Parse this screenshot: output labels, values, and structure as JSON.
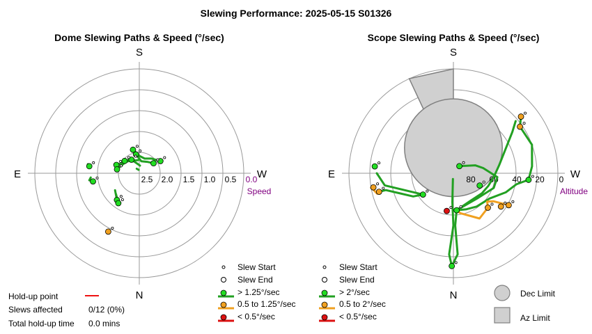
{
  "title": "Slewing Performance: 2025-05-15 S01326",
  "colors": {
    "ring": "#999999",
    "axis": "#999999",
    "fast": "#22a022",
    "medium": "#f0a020",
    "slow": "#dd1111",
    "marker_fast": "#22dd22",
    "marker_medium": "#f0a020",
    "marker_slow": "#dd1111",
    "scale_label": "#800080",
    "limit_fill": "#d0d0d0",
    "limit_edge": "#808080",
    "holdup": "#ee1111"
  },
  "legend": {
    "slew_start": "Slew Start",
    "slew_end": "Slew End",
    "dome_fast": "> 1.25°/sec",
    "dome_medium": "0.5 to 1.25°/sec",
    "dome_slow": "< 0.5°/sec",
    "scope_fast": "> 2°/sec",
    "scope_medium": "0.5 to 2°/sec",
    "scope_slow": "< 0.5°/sec",
    "dec_limit": "Dec Limit",
    "az_limit": "Az Limit"
  },
  "stats": {
    "holdup_label": "Hold-up point",
    "slews_affected_label": "Slews affected",
    "slews_affected_value": "0/12 (0%)",
    "total_holdup_label": "Total hold-up time",
    "total_holdup_value": "0.0 mins"
  },
  "chart_data": [
    {
      "type": "polar-line",
      "title": "Dome Slewing Paths & Speed (°/sec)",
      "directions": {
        "top": "S",
        "bottom": "N",
        "left": "E",
        "right": "W"
      },
      "radial_label": "Speed",
      "radial_axis": "speed (°/sec), 3.0 at centre decreasing to 0.0 at outer ring",
      "radial_ticks": [
        "2.5",
        "2.0",
        "1.5",
        "1.0",
        "0.5",
        "0.0"
      ],
      "radial_tick_values": [
        2.5,
        2.0,
        1.5,
        1.0,
        0.5,
        0.0
      ],
      "paths": [
        {
          "speed_class": "fast",
          "points": [
            [
              165,
              2.3
            ],
            [
              180,
              2.5
            ],
            [
              200,
              2.55
            ],
            [
              220,
              2.45
            ],
            [
              240,
              2.3
            ]
          ]
        },
        {
          "speed_class": "fast",
          "points": [
            [
              170,
              2.45
            ],
            [
              190,
              2.65
            ],
            [
              215,
              2.6
            ],
            [
              235,
              2.5
            ]
          ]
        },
        {
          "speed_class": "fast",
          "points": [
            [
              150,
              2.55
            ],
            [
              165,
              2.7
            ],
            [
              185,
              2.78
            ]
          ]
        },
        {
          "speed_class": "fast",
          "points": [
            [
              130,
              2.45
            ],
            [
              150,
              2.58
            ],
            [
              175,
              2.62
            ]
          ]
        },
        {
          "speed_class": "fast",
          "points": [
            [
              110,
              2.3
            ],
            [
              125,
              2.47
            ],
            [
              145,
              2.55
            ]
          ]
        },
        {
          "speed_class": "fast",
          "points": [
            [
              100,
              2.35
            ],
            [
              115,
              2.45
            ],
            [
              140,
              2.5
            ]
          ]
        },
        {
          "speed_class": "fast",
          "points": [
            [
              98,
              1.55
            ],
            [
              100,
              1.5
            ],
            [
              97,
              1.52
            ]
          ]
        },
        {
          "speed_class": "fast",
          "points": [
            [
              80,
              1.65
            ],
            [
              82,
              1.55
            ],
            [
              85,
              1.6
            ]
          ]
        },
        {
          "speed_class": "fast",
          "points": [
            [
              40,
              2.0
            ],
            [
              55,
              2.15
            ]
          ]
        },
        {
          "speed_class": "fast",
          "points": [
            [
              35,
              1.95
            ],
            [
              48,
              2.1
            ]
          ]
        },
        {
          "speed_class": "fast",
          "points": [
            [
              150,
              2.85
            ],
            [
              170,
              2.9
            ]
          ]
        }
      ],
      "markers": [
        {
          "az": 240,
          "speed": 2.3,
          "speed_class": "fast"
        },
        {
          "az": 235,
          "speed": 2.5,
          "speed_class": "fast"
        },
        {
          "az": 165,
          "speed": 2.3,
          "speed_class": "fast"
        },
        {
          "az": 170,
          "speed": 2.45,
          "speed_class": "fast"
        },
        {
          "az": 150,
          "speed": 2.55,
          "speed_class": "fast"
        },
        {
          "az": 130,
          "speed": 2.45,
          "speed_class": "fast"
        },
        {
          "az": 110,
          "speed": 2.3,
          "speed_class": "fast"
        },
        {
          "az": 100,
          "speed": 2.35,
          "speed_class": "fast"
        },
        {
          "az": 98,
          "speed": 1.55,
          "speed_class": "fast"
        },
        {
          "az": 80,
          "speed": 1.65,
          "speed_class": "fast"
        },
        {
          "az": 40,
          "speed": 2.0,
          "speed_class": "fast"
        },
        {
          "az": 35,
          "speed": 1.95,
          "speed_class": "fast"
        },
        {
          "az": 28,
          "speed": 1.1,
          "speed_class": "medium"
        }
      ]
    },
    {
      "type": "polar-line",
      "title": "Scope Slewing Paths & Speed (°/sec)",
      "directions": {
        "top": "S",
        "bottom": "N",
        "left": "E",
        "right": "W"
      },
      "radial_label": "Altitude",
      "radial_axis": "altitude (°), 90 at centre decreasing to 0 at outer ring",
      "radial_ticks": [
        "80",
        "60",
        "40",
        "20",
        "0"
      ],
      "radial_tick_values": [
        80,
        60,
        40,
        20,
        0
      ],
      "paths": [
        {
          "speed_class": "fast",
          "points": [
            [
              1,
              10
            ],
            [
              3,
              20
            ],
            [
              0,
              45
            ],
            [
              2,
              65
            ],
            [
              5,
              85
            ]
          ]
        },
        {
          "speed_class": "fast",
          "points": [
            [
              1,
              10
            ],
            [
              -3,
              20
            ],
            [
              -2,
              45
            ],
            [
              -5,
              58
            ]
          ]
        },
        {
          "speed_class": "fast",
          "points": [
            [
              -5,
              58
            ],
            [
              -20,
              57
            ],
            [
              -35,
              55
            ],
            [
              -55,
              52
            ],
            [
              -70,
              42
            ],
            [
              -80,
              35
            ],
            [
              -85,
              25
            ]
          ]
        },
        {
          "speed_class": "fast",
          "points": [
            [
              -85,
              25
            ],
            [
              -95,
              22
            ],
            [
              -110,
              18
            ],
            [
              -125,
              20
            ],
            [
              -130,
              14
            ]
          ]
        },
        {
          "speed_class": "fast",
          "points": [
            [
              -5,
              58
            ],
            [
              -30,
              62
            ],
            [
              -55,
              60
            ],
            [
              -70,
              58
            ],
            [
              -85,
              55
            ],
            [
              -100,
              50
            ],
            [
              -125,
              28
            ],
            [
              -130,
              20
            ]
          ]
        },
        {
          "speed_class": "fast",
          "points": [
            [
              -5,
              58
            ],
            [
              -45,
              60
            ],
            [
              -70,
              53
            ],
            [
              -85,
              52
            ],
            [
              -100,
              64
            ],
            [
              -110,
              70
            ],
            [
              -140,
              82
            ]
          ]
        },
        {
          "speed_class": "medium",
          "points": [
            [
              -5,
              58
            ],
            [
              -10,
              55
            ],
            [
              -30,
              45
            ],
            [
              -45,
              48
            ],
            [
              -50,
              52
            ]
          ]
        },
        {
          "speed_class": "medium",
          "points": [
            [
              -50,
              52
            ],
            [
              -55,
              48
            ],
            [
              -60,
              35
            ]
          ]
        },
        {
          "speed_class": "fast",
          "points": [
            [
              55,
              58
            ],
            [
              60,
              50
            ],
            [
              70,
              40
            ],
            [
              76,
              30
            ],
            [
              76,
              24
            ]
          ]
        },
        {
          "speed_class": "fast",
          "points": [
            [
              55,
              58
            ],
            [
              80,
              30
            ],
            [
              90,
              24
            ]
          ]
        },
        {
          "speed_class": "medium",
          "points": [
            [
              75,
              22
            ],
            [
              78,
              20
            ],
            [
              80,
              18
            ]
          ]
        }
      ],
      "markers": [
        {
          "az": 1,
          "alt": 10,
          "speed_class": "fast"
        },
        {
          "az": -5,
          "alt": 58,
          "speed_class": "fast"
        },
        {
          "az": -65,
          "alt": 65,
          "speed_class": "fast"
        },
        {
          "az": -140,
          "alt": 82,
          "speed_class": "fast"
        },
        {
          "az": -85,
          "alt": 25,
          "speed_class": "fast"
        },
        {
          "az": -130,
          "alt": 14,
          "speed_class": "medium"
        },
        {
          "az": -125,
          "alt": 20,
          "speed_class": "medium"
        },
        {
          "az": -60,
          "alt": 35,
          "speed_class": "medium"
        },
        {
          "az": -45,
          "alt": 48,
          "speed_class": "medium"
        },
        {
          "az": -55,
          "alt": 40,
          "speed_class": "medium"
        },
        {
          "az": 76,
          "alt": 24,
          "speed_class": "medium"
        },
        {
          "az": 80,
          "alt": 20,
          "speed_class": "medium"
        },
        {
          "az": 95,
          "alt": 22,
          "speed_class": "fast"
        },
        {
          "az": 55,
          "alt": 58,
          "speed_class": "fast"
        },
        {
          "az": 10,
          "alt": 57,
          "speed_class": "slow"
        }
      ],
      "limits": {
        "dec_limit": {
          "az": 180,
          "alt_center": 68,
          "alt_radius": 26
        },
        "az_limit": {
          "az_from": 180,
          "az_to": 155,
          "alt_inner": 42,
          "alt_outer": 0
        }
      }
    }
  ]
}
